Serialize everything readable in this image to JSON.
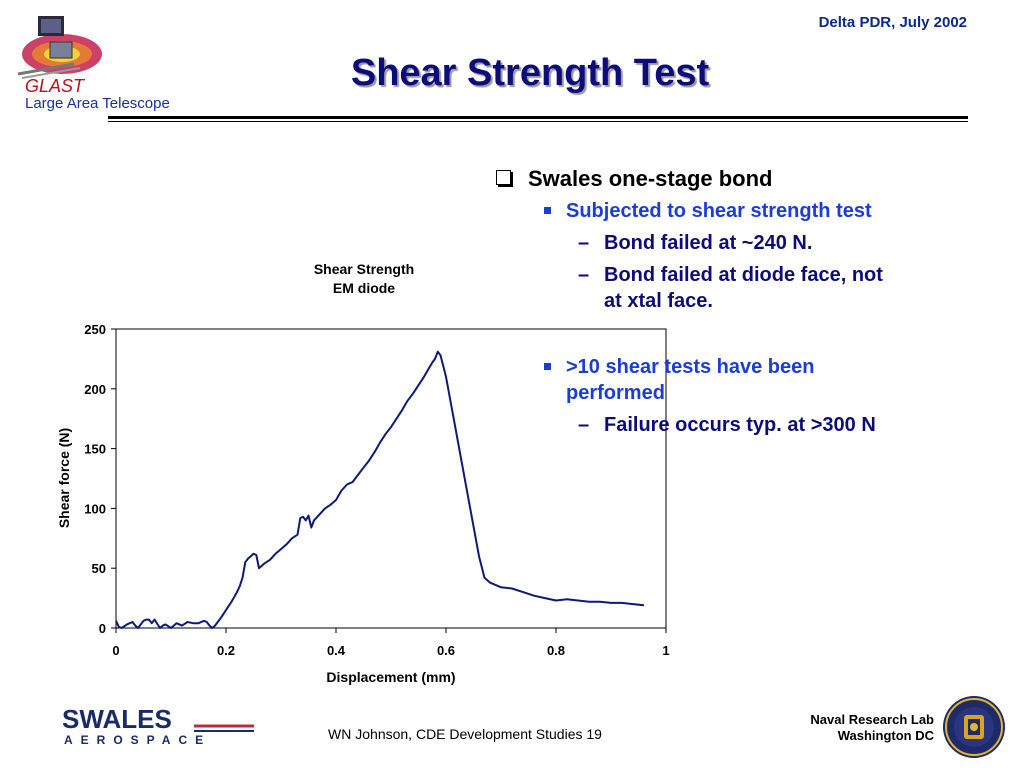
{
  "header": {
    "date": "Delta PDR, July 2002",
    "title": "Shear Strength Test",
    "logo_text": "GLAST",
    "logo_subtitle": "Large Area Telescope"
  },
  "bullets": {
    "level1": "Swales one-stage bond",
    "item_a": "Subjected to shear strength test",
    "item_a_sub1": "Bond failed at ~240 N.",
    "item_a_sub2_line1": "Bond failed at diode face, not",
    "item_a_sub2_line2": "at xtal face.",
    "item_b_line1": ">10 shear tests have been",
    "item_b_line2": "performed",
    "item_b_sub1": "Failure occurs typ. at >300 N",
    "dash": "–"
  },
  "chart_data": {
    "type": "line",
    "title": "Shear Strength",
    "subtitle": "EM diode",
    "xlabel": "Displacement (mm)",
    "ylabel": "Shear force (N)",
    "xlim": [
      0,
      1
    ],
    "ylim": [
      0,
      250
    ],
    "xticks": [
      "0",
      "0.2",
      "0.4",
      "0.6",
      "0.8",
      "1"
    ],
    "yticks": [
      "0",
      "50",
      "100",
      "150",
      "200",
      "250"
    ],
    "grid": false,
    "line_color": "#0d1a7a",
    "series": [
      {
        "x": [
          0,
          0.005,
          0.01,
          0.02,
          0.03,
          0.035,
          0.04,
          0.05,
          0.055,
          0.06,
          0.065,
          0.07,
          0.08,
          0.085,
          0.09,
          0.1,
          0.11,
          0.12,
          0.13,
          0.14,
          0.15,
          0.16,
          0.165,
          0.17,
          0.175,
          0.18,
          0.19,
          0.2,
          0.21,
          0.22,
          0.225,
          0.23,
          0.235,
          0.24,
          0.245,
          0.25,
          0.255,
          0.26,
          0.265,
          0.27,
          0.28,
          0.29,
          0.3,
          0.31,
          0.32,
          0.33,
          0.335,
          0.34,
          0.345,
          0.35,
          0.355,
          0.36,
          0.37,
          0.38,
          0.39,
          0.4,
          0.41,
          0.42,
          0.43,
          0.44,
          0.45,
          0.46,
          0.47,
          0.48,
          0.49,
          0.5,
          0.51,
          0.52,
          0.53,
          0.54,
          0.55,
          0.56,
          0.57,
          0.575,
          0.58,
          0.585,
          0.59,
          0.6,
          0.61,
          0.62,
          0.63,
          0.64,
          0.65,
          0.66,
          0.67,
          0.68,
          0.69,
          0.7,
          0.72,
          0.74,
          0.76,
          0.78,
          0.8,
          0.82,
          0.84,
          0.86,
          0.88,
          0.9,
          0.92,
          0.94,
          0.96
        ],
        "y": [
          6,
          1,
          0,
          3,
          5,
          2,
          0,
          6,
          7,
          7,
          4,
          7,
          0,
          2,
          3,
          0,
          4,
          2,
          5,
          4,
          4,
          6,
          5,
          2,
          0,
          2,
          8,
          15,
          22,
          30,
          35,
          42,
          55,
          58,
          60,
          62,
          61,
          50,
          52,
          54,
          57,
          62,
          66,
          70,
          75,
          78,
          92,
          93,
          90,
          94,
          84,
          90,
          95,
          100,
          103,
          107,
          115,
          120,
          122,
          128,
          134,
          140,
          147,
          155,
          162,
          168,
          175,
          182,
          190,
          196,
          203,
          210,
          218,
          222,
          225,
          231,
          228,
          210,
          185,
          160,
          135,
          110,
          85,
          60,
          42,
          38,
          36,
          34,
          33,
          30,
          27,
          25,
          23,
          24,
          23,
          22,
          22,
          21,
          21,
          20,
          19
        ]
      }
    ]
  },
  "footer": {
    "left_logo_text": "SWALES",
    "left_logo_sub": "AEROSPACE",
    "center": "WN Johnson, CDE Development Studies 19",
    "right_line1": "Naval Research Lab",
    "right_line2": "Washington DC"
  }
}
